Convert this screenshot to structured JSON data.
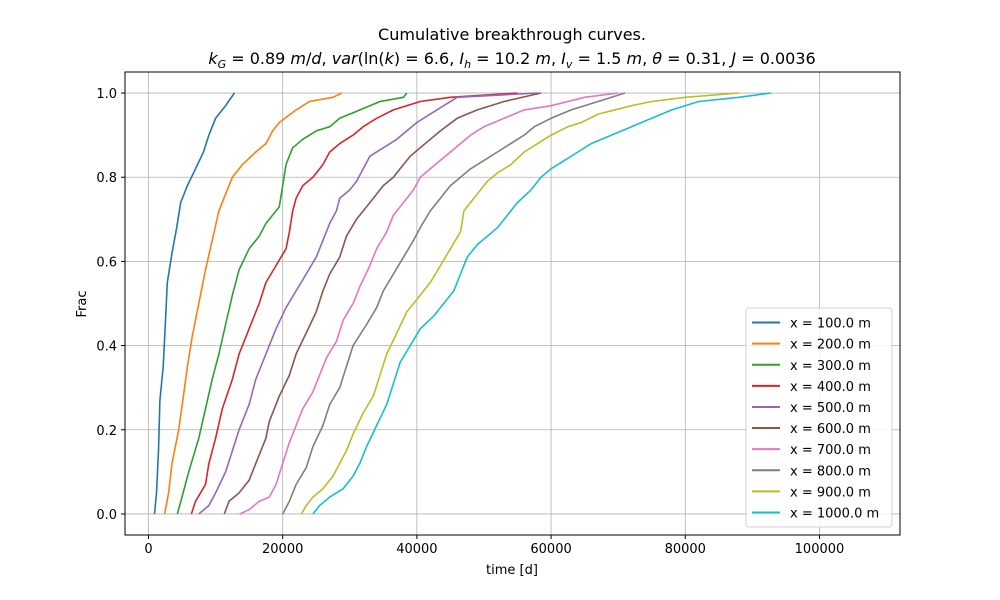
{
  "chart_data": {
    "type": "line",
    "title_line1": "Cumulative breakthrough curves.",
    "title_line2": "k_G = 0.89 m/d, var(ln(k) = 6.6, I_h = 10.2 m, I_v = 1.5 m, θ = 0.31, J = 0.0036",
    "xlabel": "time [d]",
    "ylabel": "Frac",
    "xlim": [
      -3500,
      112000
    ],
    "ylim": [
      -0.05,
      1.05
    ],
    "xticks": [
      0,
      20000,
      40000,
      60000,
      80000,
      100000
    ],
    "xtick_labels": [
      "0",
      "20000",
      "40000",
      "60000",
      "80000",
      "100000"
    ],
    "yticks": [
      0.0,
      0.2,
      0.4,
      0.6,
      0.8,
      1.0
    ],
    "ytick_labels": [
      "0.0",
      "0.2",
      "0.4",
      "0.6",
      "0.8",
      "1.0"
    ],
    "grid": true,
    "legend_position": "lower-right",
    "series": [
      {
        "name": "x = 100.0 m",
        "color": "#1f77b4",
        "points": [
          [
            900,
            0.0
          ],
          [
            1200,
            0.05
          ],
          [
            1500,
            0.15
          ],
          [
            1700,
            0.27
          ],
          [
            2200,
            0.35
          ],
          [
            2500,
            0.45
          ],
          [
            2800,
            0.55
          ],
          [
            3500,
            0.62
          ],
          [
            4200,
            0.68
          ],
          [
            4800,
            0.74
          ],
          [
            5800,
            0.78
          ],
          [
            7000,
            0.82
          ],
          [
            8200,
            0.86
          ],
          [
            9000,
            0.9
          ],
          [
            10000,
            0.94
          ],
          [
            11500,
            0.97
          ],
          [
            12800,
            1.0
          ]
        ]
      },
      {
        "name": "x = 200.0 m",
        "color": "#ff7f0e",
        "points": [
          [
            2400,
            0.0
          ],
          [
            3000,
            0.05
          ],
          [
            3500,
            0.12
          ],
          [
            4500,
            0.2
          ],
          [
            5200,
            0.28
          ],
          [
            5800,
            0.35
          ],
          [
            6500,
            0.42
          ],
          [
            7500,
            0.5
          ],
          [
            8500,
            0.58
          ],
          [
            9500,
            0.65
          ],
          [
            10500,
            0.72
          ],
          [
            11500,
            0.76
          ],
          [
            12500,
            0.8
          ],
          [
            14000,
            0.83
          ],
          [
            16000,
            0.86
          ],
          [
            17500,
            0.88
          ],
          [
            18500,
            0.91
          ],
          [
            19500,
            0.93
          ],
          [
            22000,
            0.96
          ],
          [
            24000,
            0.98
          ],
          [
            27500,
            0.99
          ],
          [
            28800,
            1.0
          ]
        ]
      },
      {
        "name": "x = 300.0 m",
        "color": "#2ca02c",
        "points": [
          [
            4300,
            0.0
          ],
          [
            5000,
            0.04
          ],
          [
            6000,
            0.1
          ],
          [
            7500,
            0.18
          ],
          [
            8500,
            0.25
          ],
          [
            9500,
            0.32
          ],
          [
            10500,
            0.38
          ],
          [
            11500,
            0.45
          ],
          [
            12500,
            0.52
          ],
          [
            13500,
            0.58
          ],
          [
            15000,
            0.63
          ],
          [
            16500,
            0.66
          ],
          [
            17500,
            0.69
          ],
          [
            19500,
            0.73
          ],
          [
            20000,
            0.78
          ],
          [
            20500,
            0.83
          ],
          [
            21500,
            0.87
          ],
          [
            23000,
            0.89
          ],
          [
            25000,
            0.91
          ],
          [
            27000,
            0.92
          ],
          [
            28500,
            0.94
          ],
          [
            30000,
            0.95
          ],
          [
            33000,
            0.97
          ],
          [
            34500,
            0.98
          ],
          [
            38000,
            0.99
          ],
          [
            38500,
            1.0
          ]
        ]
      },
      {
        "name": "x = 400.0 m",
        "color": "#d62728",
        "points": [
          [
            6400,
            0.0
          ],
          [
            7000,
            0.03
          ],
          [
            8500,
            0.07
          ],
          [
            9000,
            0.12
          ],
          [
            10000,
            0.18
          ],
          [
            11000,
            0.25
          ],
          [
            12500,
            0.32
          ],
          [
            13500,
            0.38
          ],
          [
            15000,
            0.44
          ],
          [
            16500,
            0.5
          ],
          [
            17500,
            0.55
          ],
          [
            19000,
            0.59
          ],
          [
            20500,
            0.63
          ],
          [
            21000,
            0.67
          ],
          [
            21500,
            0.72
          ],
          [
            22000,
            0.75
          ],
          [
            23000,
            0.78
          ],
          [
            24500,
            0.8
          ],
          [
            26000,
            0.83
          ],
          [
            27000,
            0.86
          ],
          [
            28500,
            0.88
          ],
          [
            30500,
            0.9
          ],
          [
            32000,
            0.92
          ],
          [
            34000,
            0.94
          ],
          [
            36500,
            0.96
          ],
          [
            40500,
            0.98
          ],
          [
            45000,
            0.99
          ],
          [
            55000,
            1.0
          ]
        ]
      },
      {
        "name": "x = 500.0 m",
        "color": "#9467bd",
        "points": [
          [
            7500,
            0.0
          ],
          [
            9000,
            0.02
          ],
          [
            10000,
            0.05
          ],
          [
            11500,
            0.1
          ],
          [
            12500,
            0.15
          ],
          [
            13500,
            0.2
          ],
          [
            15000,
            0.26
          ],
          [
            16000,
            0.32
          ],
          [
            17500,
            0.38
          ],
          [
            19000,
            0.44
          ],
          [
            20500,
            0.49
          ],
          [
            22000,
            0.53
          ],
          [
            23500,
            0.57
          ],
          [
            25000,
            0.61
          ],
          [
            26000,
            0.65
          ],
          [
            27000,
            0.69
          ],
          [
            28000,
            0.72
          ],
          [
            28500,
            0.75
          ],
          [
            30000,
            0.77
          ],
          [
            31000,
            0.79
          ],
          [
            32000,
            0.82
          ],
          [
            33000,
            0.85
          ],
          [
            35000,
            0.87
          ],
          [
            37000,
            0.89
          ],
          [
            38500,
            0.91
          ],
          [
            40000,
            0.93
          ],
          [
            42000,
            0.95
          ],
          [
            44000,
            0.97
          ],
          [
            46000,
            0.99
          ],
          [
            58000,
            1.0
          ]
        ]
      },
      {
        "name": "x = 600.0 m",
        "color": "#8c564b",
        "points": [
          [
            11300,
            0.0
          ],
          [
            12000,
            0.03
          ],
          [
            13500,
            0.05
          ],
          [
            15000,
            0.08
          ],
          [
            16000,
            0.12
          ],
          [
            17500,
            0.18
          ],
          [
            18000,
            0.22
          ],
          [
            19500,
            0.28
          ],
          [
            21000,
            0.33
          ],
          [
            22000,
            0.38
          ],
          [
            23500,
            0.43
          ],
          [
            25000,
            0.48
          ],
          [
            26000,
            0.53
          ],
          [
            27000,
            0.57
          ],
          [
            28500,
            0.61
          ],
          [
            29500,
            0.66
          ],
          [
            31000,
            0.7
          ],
          [
            32500,
            0.73
          ],
          [
            34000,
            0.76
          ],
          [
            35000,
            0.78
          ],
          [
            36500,
            0.8
          ],
          [
            37500,
            0.82
          ],
          [
            39000,
            0.85
          ],
          [
            40500,
            0.87
          ],
          [
            42000,
            0.89
          ],
          [
            43500,
            0.91
          ],
          [
            46000,
            0.94
          ],
          [
            49000,
            0.96
          ],
          [
            53000,
            0.98
          ],
          [
            58500,
            1.0
          ]
        ]
      },
      {
        "name": "x = 700.0 m",
        "color": "#e377c2",
        "points": [
          [
            13600,
            0.0
          ],
          [
            15000,
            0.01
          ],
          [
            16500,
            0.03
          ],
          [
            18000,
            0.04
          ],
          [
            19000,
            0.07
          ],
          [
            20000,
            0.12
          ],
          [
            21000,
            0.17
          ],
          [
            22000,
            0.21
          ],
          [
            23000,
            0.25
          ],
          [
            24500,
            0.29
          ],
          [
            25500,
            0.33
          ],
          [
            26500,
            0.37
          ],
          [
            28000,
            0.41
          ],
          [
            29000,
            0.46
          ],
          [
            30500,
            0.5
          ],
          [
            31500,
            0.54
          ],
          [
            33000,
            0.59
          ],
          [
            34000,
            0.63
          ],
          [
            35500,
            0.67
          ],
          [
            36500,
            0.71
          ],
          [
            38000,
            0.74
          ],
          [
            39500,
            0.77
          ],
          [
            40500,
            0.8
          ],
          [
            42000,
            0.82
          ],
          [
            43500,
            0.84
          ],
          [
            45000,
            0.86
          ],
          [
            46500,
            0.88
          ],
          [
            48000,
            0.9
          ],
          [
            50000,
            0.92
          ],
          [
            53000,
            0.94
          ],
          [
            56000,
            0.96
          ],
          [
            60000,
            0.97
          ],
          [
            65000,
            0.99
          ],
          [
            70000,
            1.0
          ]
        ]
      },
      {
        "name": "x = 800.0 m",
        "color": "#7f7f7f",
        "points": [
          [
            20000,
            0.0
          ],
          [
            21000,
            0.03
          ],
          [
            22000,
            0.07
          ],
          [
            23500,
            0.11
          ],
          [
            24500,
            0.16
          ],
          [
            26000,
            0.21
          ],
          [
            27000,
            0.26
          ],
          [
            28500,
            0.3
          ],
          [
            29500,
            0.35
          ],
          [
            30500,
            0.4
          ],
          [
            32500,
            0.45
          ],
          [
            34000,
            0.49
          ],
          [
            35000,
            0.53
          ],
          [
            36500,
            0.57
          ],
          [
            38000,
            0.61
          ],
          [
            39500,
            0.65
          ],
          [
            40500,
            0.68
          ],
          [
            42000,
            0.72
          ],
          [
            43500,
            0.75
          ],
          [
            45000,
            0.78
          ],
          [
            46500,
            0.8
          ],
          [
            48000,
            0.82
          ],
          [
            50000,
            0.84
          ],
          [
            52000,
            0.86
          ],
          [
            54000,
            0.88
          ],
          [
            56000,
            0.9
          ],
          [
            57500,
            0.92
          ],
          [
            60000,
            0.94
          ],
          [
            63000,
            0.96
          ],
          [
            67000,
            0.98
          ],
          [
            71000,
            1.0
          ]
        ]
      },
      {
        "name": "x = 900.0 m",
        "color": "#bcbd22",
        "points": [
          [
            22800,
            0.0
          ],
          [
            23500,
            0.02
          ],
          [
            24500,
            0.04
          ],
          [
            26000,
            0.06
          ],
          [
            27500,
            0.09
          ],
          [
            28500,
            0.12
          ],
          [
            29500,
            0.15
          ],
          [
            30500,
            0.19
          ],
          [
            32000,
            0.24
          ],
          [
            33500,
            0.28
          ],
          [
            34500,
            0.33
          ],
          [
            35500,
            0.38
          ],
          [
            37000,
            0.43
          ],
          [
            38500,
            0.48
          ],
          [
            40000,
            0.51
          ],
          [
            42000,
            0.55
          ],
          [
            43500,
            0.59
          ],
          [
            45000,
            0.63
          ],
          [
            46500,
            0.67
          ],
          [
            47000,
            0.72
          ],
          [
            48500,
            0.75
          ],
          [
            50500,
            0.79
          ],
          [
            52000,
            0.81
          ],
          [
            54000,
            0.83
          ],
          [
            56000,
            0.86
          ],
          [
            58000,
            0.88
          ],
          [
            60000,
            0.9
          ],
          [
            62500,
            0.92
          ],
          [
            64500,
            0.93
          ],
          [
            67000,
            0.95
          ],
          [
            72000,
            0.97
          ],
          [
            75000,
            0.98
          ],
          [
            80000,
            0.99
          ],
          [
            88000,
            1.0
          ]
        ]
      },
      {
        "name": "x = 1000.0 m",
        "color": "#17becf",
        "points": [
          [
            24500,
            0.0
          ],
          [
            25500,
            0.02
          ],
          [
            27000,
            0.04
          ],
          [
            29000,
            0.06
          ],
          [
            30500,
            0.09
          ],
          [
            31500,
            0.12
          ],
          [
            32500,
            0.16
          ],
          [
            34000,
            0.21
          ],
          [
            35500,
            0.26
          ],
          [
            36500,
            0.31
          ],
          [
            37500,
            0.36
          ],
          [
            39000,
            0.4
          ],
          [
            40500,
            0.44
          ],
          [
            42500,
            0.47
          ],
          [
            44000,
            0.5
          ],
          [
            45500,
            0.53
          ],
          [
            46500,
            0.57
          ],
          [
            47500,
            0.61
          ],
          [
            49000,
            0.64
          ],
          [
            50500,
            0.66
          ],
          [
            52000,
            0.68
          ],
          [
            53500,
            0.71
          ],
          [
            55000,
            0.74
          ],
          [
            57000,
            0.77
          ],
          [
            58500,
            0.8
          ],
          [
            60000,
            0.82
          ],
          [
            62000,
            0.84
          ],
          [
            64000,
            0.86
          ],
          [
            66000,
            0.88
          ],
          [
            69000,
            0.9
          ],
          [
            72000,
            0.92
          ],
          [
            75000,
            0.94
          ],
          [
            78000,
            0.96
          ],
          [
            82000,
            0.98
          ],
          [
            88000,
            0.99
          ],
          [
            92800,
            1.0
          ]
        ]
      }
    ]
  }
}
